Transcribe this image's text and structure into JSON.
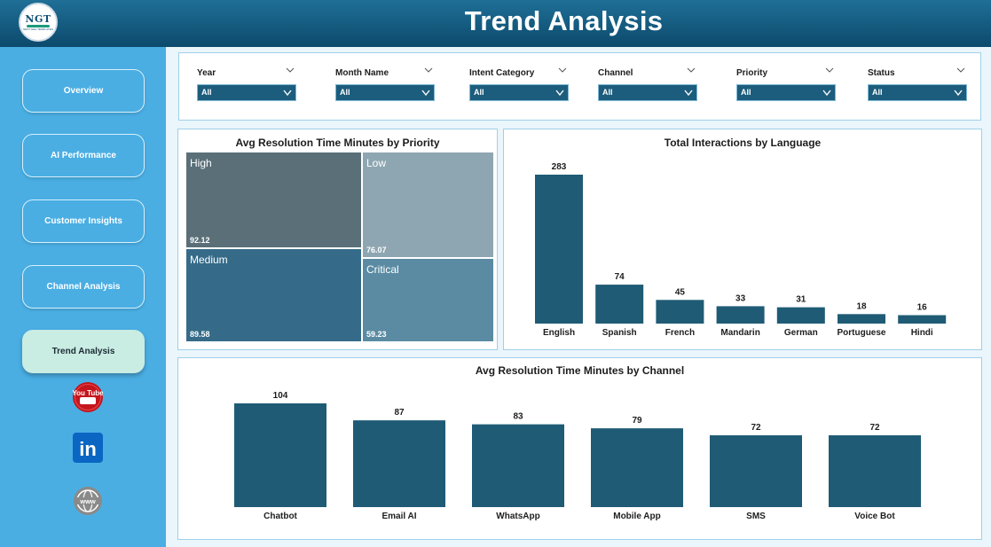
{
  "header": {
    "logo_text": "NGT",
    "logo_subtext": "NEXT GEN TEMPLATES",
    "title": "Trend Analysis"
  },
  "sidebar": {
    "items": [
      {
        "label": "Overview",
        "active": false
      },
      {
        "label": "AI Performance",
        "active": false
      },
      {
        "label": "Customer Insights",
        "active": false
      },
      {
        "label": "Channel Analysis",
        "active": false
      },
      {
        "label": "Trend Analysis",
        "active": true
      }
    ],
    "social": [
      {
        "icon": "youtube-icon",
        "label": "You Tube"
      },
      {
        "icon": "linkedin-icon",
        "label": "in"
      },
      {
        "icon": "www-globe-icon",
        "label": "www"
      }
    ]
  },
  "filters": [
    {
      "label": "Year",
      "value": "All"
    },
    {
      "label": "Month Name",
      "value": "All"
    },
    {
      "label": "Intent Category",
      "value": "All"
    },
    {
      "label": "Channel",
      "value": "All"
    },
    {
      "label": "Priority",
      "value": "All"
    },
    {
      "label": "Status",
      "value": "All"
    }
  ],
  "colors": {
    "bar": "#1f5b75",
    "header": "#0c4a6c",
    "sidebar": "#4aaee3",
    "treemap_high": "#5a6f78",
    "treemap_low": "#8ea6b1",
    "treemap_medium": "#356b88",
    "treemap_critical": "#5a8ba3"
  },
  "chart_data": [
    {
      "type": "treemap",
      "title": "Avg Resolution Time Minutes by Priority",
      "items": [
        {
          "name": "High",
          "value": 92.12
        },
        {
          "name": "Low",
          "value": 76.07
        },
        {
          "name": "Medium",
          "value": 89.58
        },
        {
          "name": "Critical",
          "value": 59.23
        }
      ]
    },
    {
      "type": "bar",
      "title": "Total Interactions by Language",
      "categories": [
        "English",
        "Spanish",
        "French",
        "Mandarin",
        "German",
        "Portuguese",
        "Hindi"
      ],
      "values": [
        283,
        74,
        45,
        33,
        31,
        18,
        16
      ],
      "xlabel": "",
      "ylabel": "",
      "ylim": [
        0,
        283
      ]
    },
    {
      "type": "bar",
      "title": "Avg Resolution Time Minutes by Channel",
      "categories": [
        "Chatbot",
        "Email AI",
        "WhatsApp",
        "Mobile App",
        "SMS",
        "Voice Bot"
      ],
      "values": [
        104,
        87,
        83,
        79,
        72,
        72
      ],
      "xlabel": "",
      "ylabel": "",
      "ylim": [
        0,
        104
      ]
    }
  ]
}
